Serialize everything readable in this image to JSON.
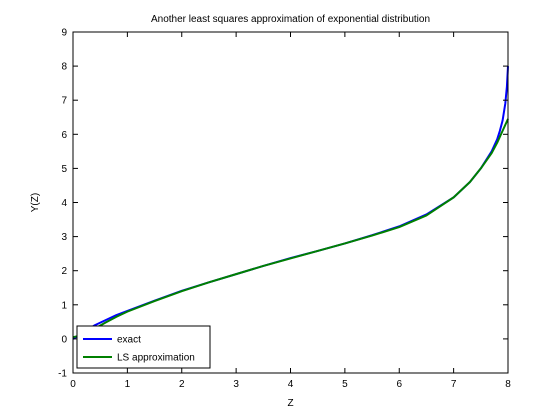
{
  "chart_data": {
    "type": "line",
    "title": "Another least squares approximation of exponential distribution",
    "xlabel": "Z",
    "ylabel": "Y(Z)",
    "xlim": [
      0,
      8
    ],
    "ylim": [
      -1,
      9
    ],
    "xticks": [
      "0",
      "1",
      "2",
      "3",
      "4",
      "5",
      "6",
      "7",
      "8"
    ],
    "yticks": [
      "-1",
      "0",
      "1",
      "2",
      "3",
      "4",
      "5",
      "6",
      "7",
      "8",
      "9"
    ],
    "grid": false,
    "legend_position": "bottom-left",
    "series": [
      {
        "name": "exact",
        "color": "#0000ff",
        "x": [
          0,
          0.2,
          0.4,
          0.6,
          0.8,
          1.0,
          1.5,
          2.0,
          2.5,
          3.0,
          3.5,
          4.0,
          4.5,
          5.0,
          5.5,
          6.0,
          6.5,
          7.0,
          7.3,
          7.5,
          7.7,
          7.8,
          7.85,
          7.9,
          7.95,
          7.98,
          8.0
        ],
        "y": [
          0,
          0.2,
          0.4,
          0.55,
          0.7,
          0.82,
          1.12,
          1.41,
          1.66,
          1.9,
          2.14,
          2.37,
          2.58,
          2.8,
          3.04,
          3.3,
          3.65,
          4.15,
          4.6,
          5.0,
          5.5,
          5.85,
          6.1,
          6.4,
          6.9,
          7.4,
          8.0
        ]
      },
      {
        "name": "LS approximation",
        "color": "#008000",
        "x": [
          0,
          0.2,
          0.4,
          0.6,
          0.8,
          1.0,
          1.5,
          2.0,
          2.5,
          3.0,
          3.5,
          4.0,
          4.5,
          5.0,
          5.5,
          6.0,
          6.5,
          7.0,
          7.3,
          7.5,
          7.7,
          7.8,
          7.9,
          8.0
        ],
        "y": [
          0.05,
          0.12,
          0.3,
          0.48,
          0.65,
          0.8,
          1.11,
          1.4,
          1.66,
          1.9,
          2.14,
          2.36,
          2.58,
          2.8,
          3.03,
          3.28,
          3.62,
          4.15,
          4.6,
          5.0,
          5.45,
          5.75,
          6.1,
          6.45
        ]
      }
    ]
  }
}
